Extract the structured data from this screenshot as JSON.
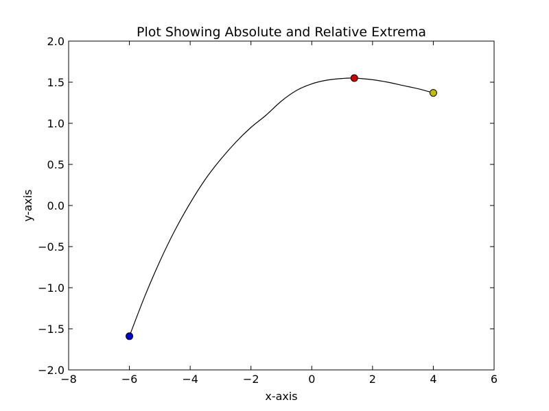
{
  "chart_data": {
    "type": "line",
    "title": "Plot Showing Absolute and Relative Extrema",
    "xlabel": "x-axis",
    "ylabel": "y-axis",
    "xlim": [
      -8,
      6
    ],
    "ylim": [
      -2.0,
      2.0
    ],
    "xticks": [
      -8,
      -6,
      -4,
      -2,
      0,
      2,
      4,
      6
    ],
    "xtick_labels": [
      "−8",
      "−6",
      "−4",
      "−2",
      "0",
      "2",
      "4",
      "6"
    ],
    "yticks": [
      -2.0,
      -1.5,
      -1.0,
      -0.5,
      0.0,
      0.5,
      1.0,
      1.5,
      2.0
    ],
    "ytick_labels": [
      "−2.0",
      "−1.5",
      "−1.0",
      "−0.5",
      "0.0",
      "0.5",
      "1.0",
      "1.5",
      "2.0"
    ],
    "grid": false,
    "series": [
      {
        "color": "#000000",
        "x": [
          -6.0,
          -5.5,
          -5.0,
          -4.5,
          -4.0,
          -3.5,
          -3.0,
          -2.5,
          -2.0,
          -1.5,
          -1.0,
          -0.5,
          0.0,
          0.5,
          1.0,
          1.4,
          2.0,
          2.5,
          3.0,
          3.5,
          4.0
        ],
        "y": [
          -1.59,
          -1.11,
          -0.68,
          -0.3,
          0.03,
          0.32,
          0.56,
          0.77,
          0.95,
          1.1,
          1.27,
          1.4,
          1.48,
          1.525,
          1.545,
          1.55,
          1.53,
          1.5,
          1.46,
          1.42,
          1.37
        ]
      }
    ],
    "markers": [
      {
        "x": -6.0,
        "y": -1.59,
        "color": "#0000cc"
      },
      {
        "x": 1.4,
        "y": 1.55,
        "color": "#cc0000"
      },
      {
        "x": 4.0,
        "y": 1.37,
        "color": "#bfbf00"
      }
    ]
  }
}
